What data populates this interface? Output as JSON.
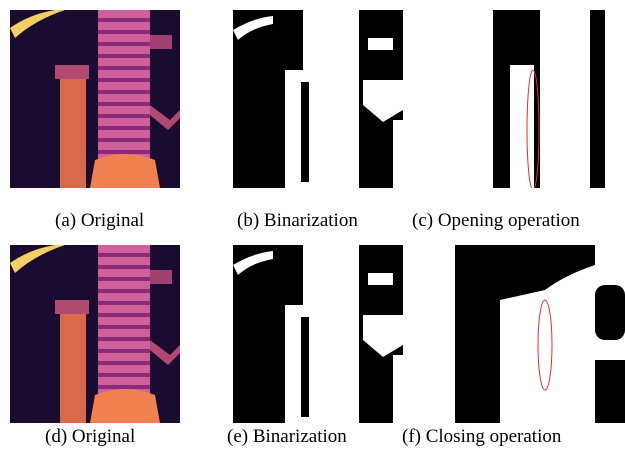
{
  "panels": [
    {
      "caption": "(a) Original"
    },
    {
      "caption": "(b) Binarization"
    },
    {
      "caption": "(c) Opening operation"
    },
    {
      "caption": "(d) Original"
    },
    {
      "caption": "(e) Binarization"
    },
    {
      "caption": "(f) Closing operation"
    }
  ]
}
